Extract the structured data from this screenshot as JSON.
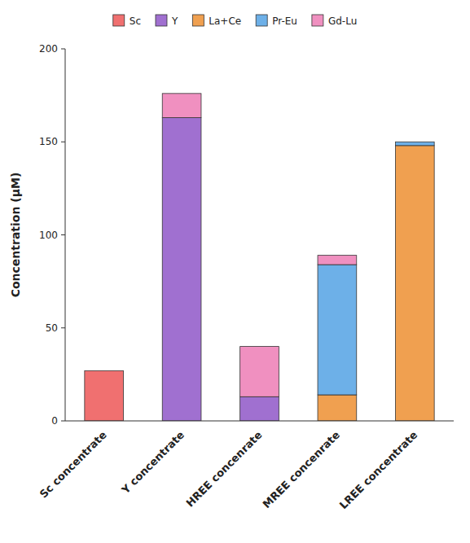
{
  "chart_data": {
    "type": "bar",
    "stacked": true,
    "grid": false,
    "legend": "top",
    "y_label": "Concentration (μM)",
    "categories": [
      "Sc concentrate",
      "Y concentrate",
      "HREE concenrate",
      "MREE concenrate",
      "LREE concentrate"
    ],
    "series": [
      {
        "name": "Sc",
        "color": "#f07070",
        "values": [
          27,
          0,
          0,
          0,
          0
        ]
      },
      {
        "name": "Y",
        "color": "#a070d0",
        "values": [
          0,
          163,
          13,
          0,
          0
        ]
      },
      {
        "name": "La+Ce",
        "color": "#f0a050",
        "values": [
          0,
          0,
          0,
          14,
          148
        ]
      },
      {
        "name": "Pr-Eu",
        "color": "#6db0e8",
        "values": [
          0,
          0,
          0,
          70,
          2
        ]
      },
      {
        "name": "Gd-Lu",
        "color": "#f090c0",
        "values": [
          0,
          13,
          27,
          5,
          0
        ]
      }
    ],
    "ylim": [
      0,
      200
    ],
    "yticks": [
      0,
      50,
      100,
      150,
      200
    ]
  }
}
